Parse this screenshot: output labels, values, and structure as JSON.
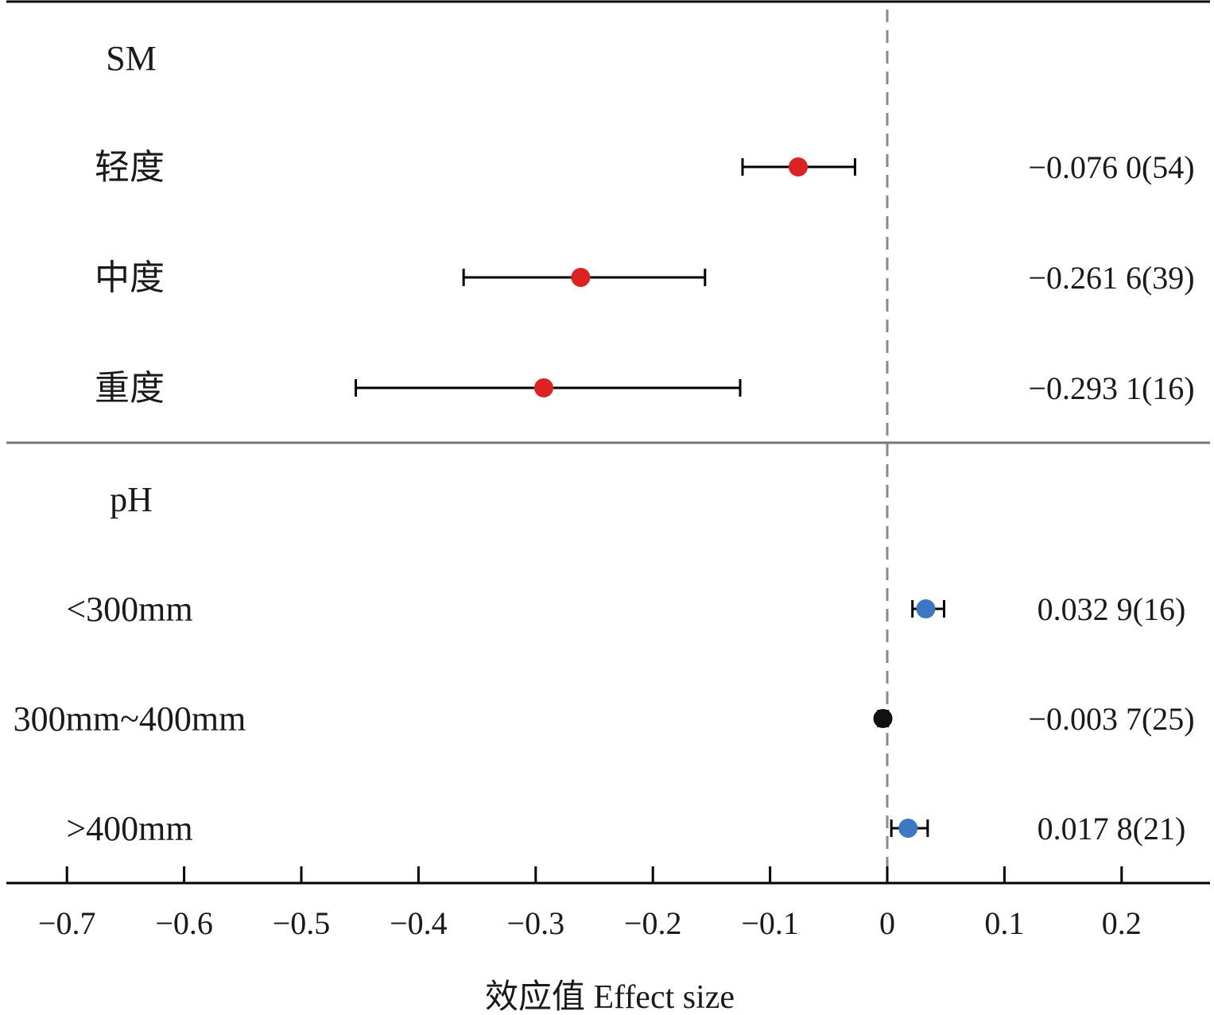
{
  "chart_data": {
    "type": "forest",
    "xlabel": "效应值 Effect size",
    "x_ticks": [
      "−0.7",
      "−0.6",
      "−0.5",
      "−0.4",
      "−0.3",
      "−0.2",
      "−0.1",
      "0",
      "0.1",
      "0.2"
    ],
    "x_tick_values": [
      -0.7,
      -0.6,
      -0.5,
      -0.4,
      -0.3,
      -0.2,
      -0.1,
      0,
      0.1,
      0.2
    ],
    "xlim": [
      -0.77,
      0.277
    ],
    "reference_line": 0,
    "groups": [
      {
        "name": "SM",
        "rows": [
          {
            "label": "轻度",
            "value": -0.076,
            "ci": [
              -0.1235,
              -0.0275
            ],
            "text": "−0.076 0(54)",
            "color": "#dd2222"
          },
          {
            "label": "中度",
            "value": -0.2616,
            "ci": [
              -0.3615,
              -0.1555
            ],
            "text": "−0.261 6(39)",
            "color": "#dd2222"
          },
          {
            "label": "重度",
            "value": -0.2931,
            "ci": [
              -0.4535,
              -0.1255
            ],
            "text": "−0.293 1(16)",
            "color": "#dd2222"
          }
        ]
      },
      {
        "name": "pH",
        "rows": [
          {
            "label": "<300mm",
            "value": 0.0329,
            "ci": [
              0.0215,
              0.0485
            ],
            "text": "0.032 9(16)",
            "color": "#3a78c4"
          },
          {
            "label": "300mm~400mm",
            "value": -0.0037,
            "ci": [
              -0.0075,
              0.0005
            ],
            "text": "−0.003 7(25)",
            "color": "#111111"
          },
          {
            "label": ">400mm",
            "value": 0.0178,
            "ci": [
              0.0035,
              0.0345
            ],
            "text": "0.017 8(21)",
            "color": "#3a78c4"
          }
        ]
      }
    ]
  }
}
